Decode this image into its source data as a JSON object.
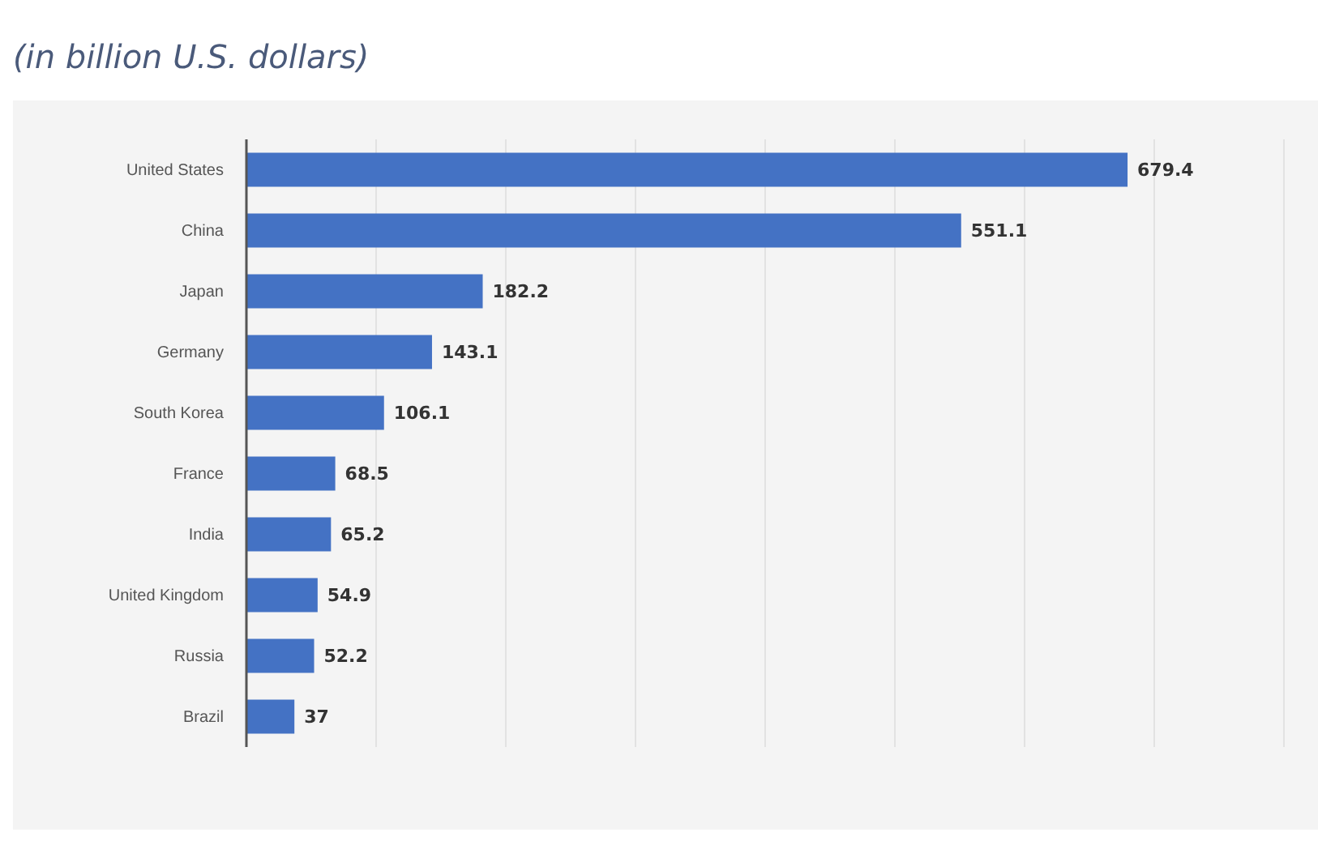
{
  "chart_data": {
    "type": "bar",
    "orientation": "horizontal",
    "title": "(in billion U.S. dollars)",
    "categories": [
      "United States",
      "China",
      "Japan",
      "Germany",
      "South Korea",
      "France",
      "India",
      "United Kingdom",
      "Russia",
      "Brazil"
    ],
    "values": [
      679.4,
      551.1,
      182.2,
      143.1,
      106.1,
      68.5,
      65.2,
      54.9,
      52.2,
      37
    ],
    "color": "#4472c4",
    "xlim": [
      0,
      800
    ],
    "xticks": [
      {
        "value": 100,
        "label": null
      },
      {
        "value": 200,
        "label": null
      },
      {
        "value": 300,
        "label": null
      },
      {
        "value": 400,
        "label": null
      },
      {
        "value": 500,
        "label": null
      },
      {
        "value": 600,
        "label": null
      },
      {
        "value": 700,
        "label": null
      },
      {
        "value": 800,
        "label": null
      }
    ],
    "grid": "x",
    "tick_labels": "y",
    "data_labels": true
  }
}
